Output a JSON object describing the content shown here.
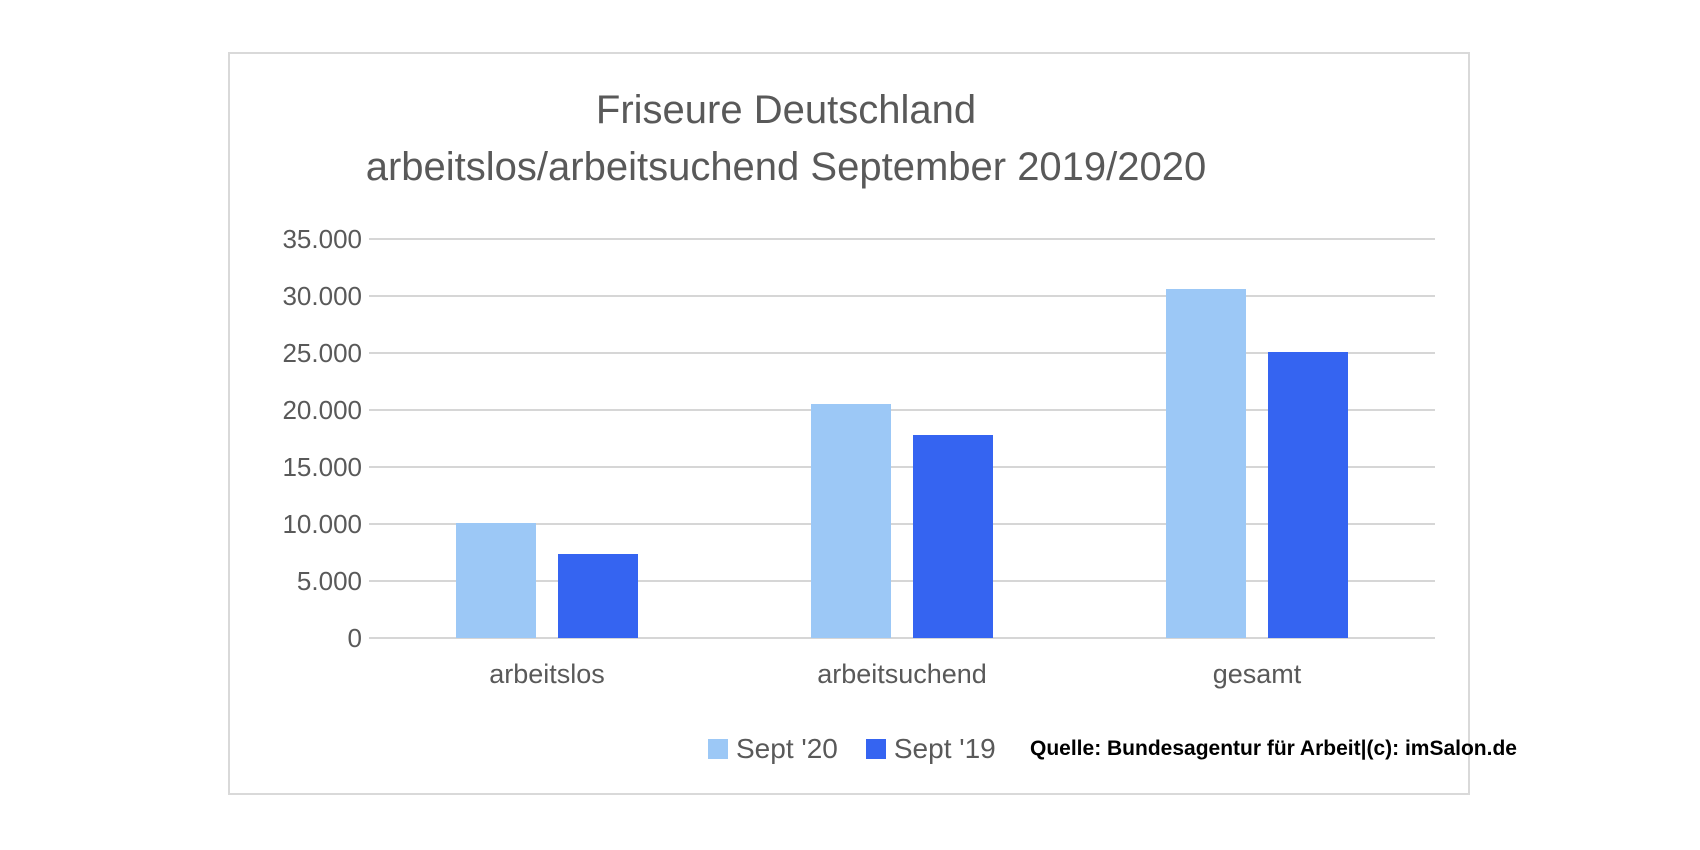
{
  "chart_data": {
    "type": "bar",
    "title_lines": [
      "Friseure Deutschland",
      "arbeitslos/arbeitsuchend September 2019/2020"
    ],
    "categories": [
      "arbeitslos",
      "arbeitsuchend",
      "gesamt"
    ],
    "series": [
      {
        "name": "Sept '20",
        "color": "#9cc8f6",
        "values": [
          10100,
          20500,
          30600
        ]
      },
      {
        "name": "Sept '19",
        "color": "#3564f1",
        "values": [
          7400,
          17800,
          25100
        ]
      }
    ],
    "y_ticks": [
      {
        "label": "35.000",
        "value": 35000
      },
      {
        "label": "30.000",
        "value": 30000
      },
      {
        "label": "25.000",
        "value": 25000
      },
      {
        "label": "20.000",
        "value": 20000
      },
      {
        "label": "15.000",
        "value": 15000
      },
      {
        "label": "10.000",
        "value": 10000
      },
      {
        "label": "5.000",
        "value": 5000
      },
      {
        "label": "0",
        "value": 0
      }
    ],
    "ylim": [
      0,
      35000
    ],
    "grid": true,
    "legend_position": "bottom",
    "source_note": "Quelle: Bundesagentur für Arbeit|(c): imSalon.de",
    "colors": {
      "title_text": "#595959",
      "axis_text": "#595959",
      "gridline": "#d6d6d6",
      "panel_border": "#d9d9d9",
      "source_text": "#000000"
    }
  }
}
